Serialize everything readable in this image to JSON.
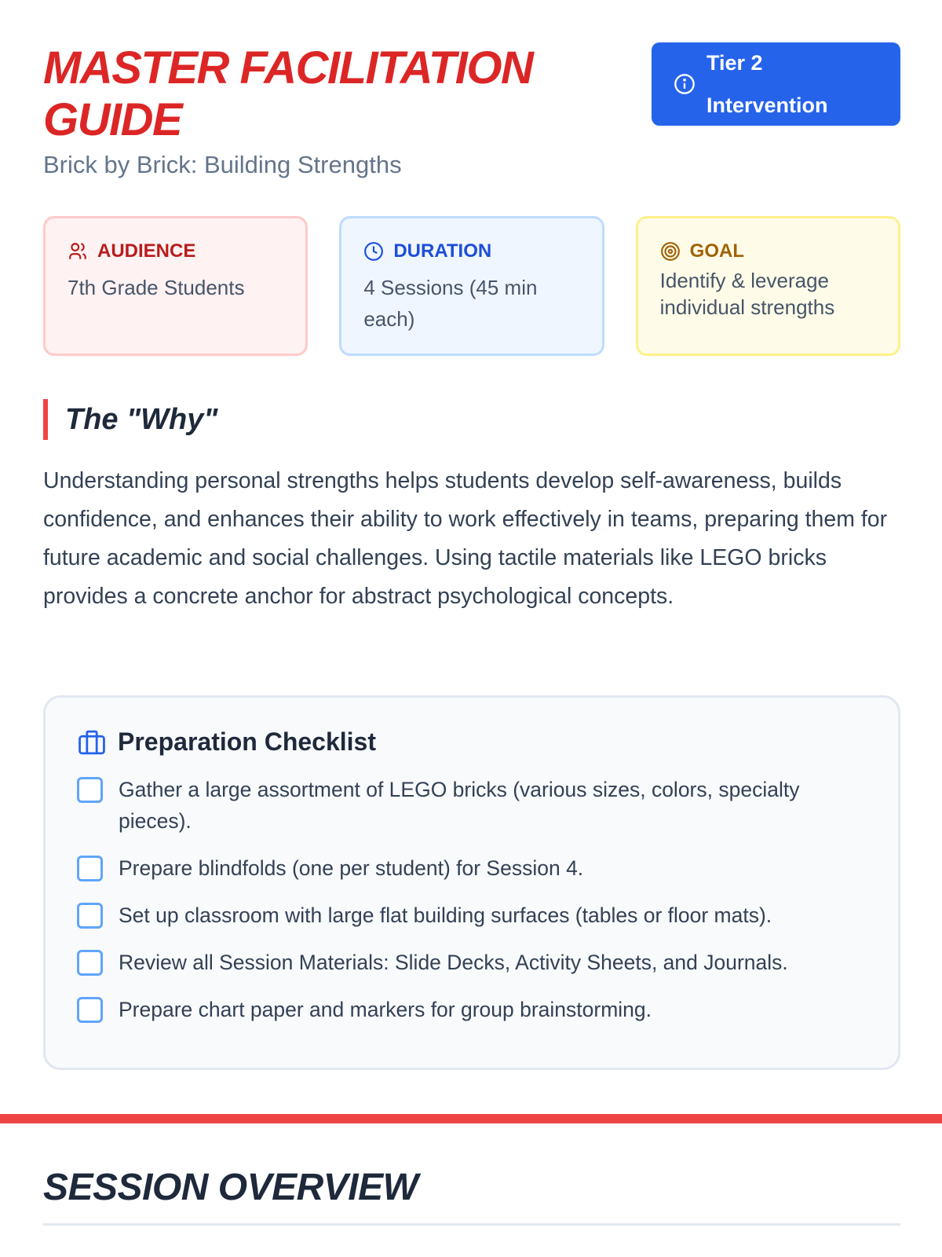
{
  "header": {
    "title": "MASTER FACILITATION GUIDE",
    "subtitle": "Brick by Brick: Building Strengths",
    "badge": {
      "label": "Tier 2 Intervention",
      "icon": "info-icon",
      "color": "#2563eb"
    }
  },
  "cards": [
    {
      "label": "AUDIENCE",
      "value": "7th Grade Students",
      "icon": "users-icon"
    },
    {
      "label": "DURATION",
      "value": "4 Sessions (45 min each)",
      "icon": "clock-icon"
    },
    {
      "label": "GOAL",
      "value": "Identify & leverage individual strengths",
      "icon": "target-icon"
    }
  ],
  "why": {
    "heading": "The \"Why\"",
    "text": "Understanding personal strengths helps students develop self-awareness, builds confidence, and enhances their ability to work effectively in teams, preparing them for future academic and social challenges. Using tactile materials like LEGO bricks provides a concrete anchor for abstract psychological concepts."
  },
  "checklist": {
    "title": "Preparation Checklist",
    "icon": "briefcase-icon",
    "items": [
      {
        "label": "Gather a large assortment of LEGO bricks (various sizes, colors, specialty pieces).",
        "checked": false
      },
      {
        "label": "Prepare blindfolds (one per student) for Session 4.",
        "checked": false
      },
      {
        "label": "Set up classroom with large flat building surfaces (tables or floor mats).",
        "checked": false
      },
      {
        "label": "Review all Session Materials: Slide Decks, Activity Sheets, and Journals.",
        "checked": false
      },
      {
        "label": "Prepare chart paper and markers for group brainstorming.",
        "checked": false
      }
    ]
  },
  "session_overview": {
    "title": "SESSION OVERVIEW"
  },
  "colors": {
    "accent_red": "#dc2626",
    "accent_blue": "#2563eb"
  }
}
